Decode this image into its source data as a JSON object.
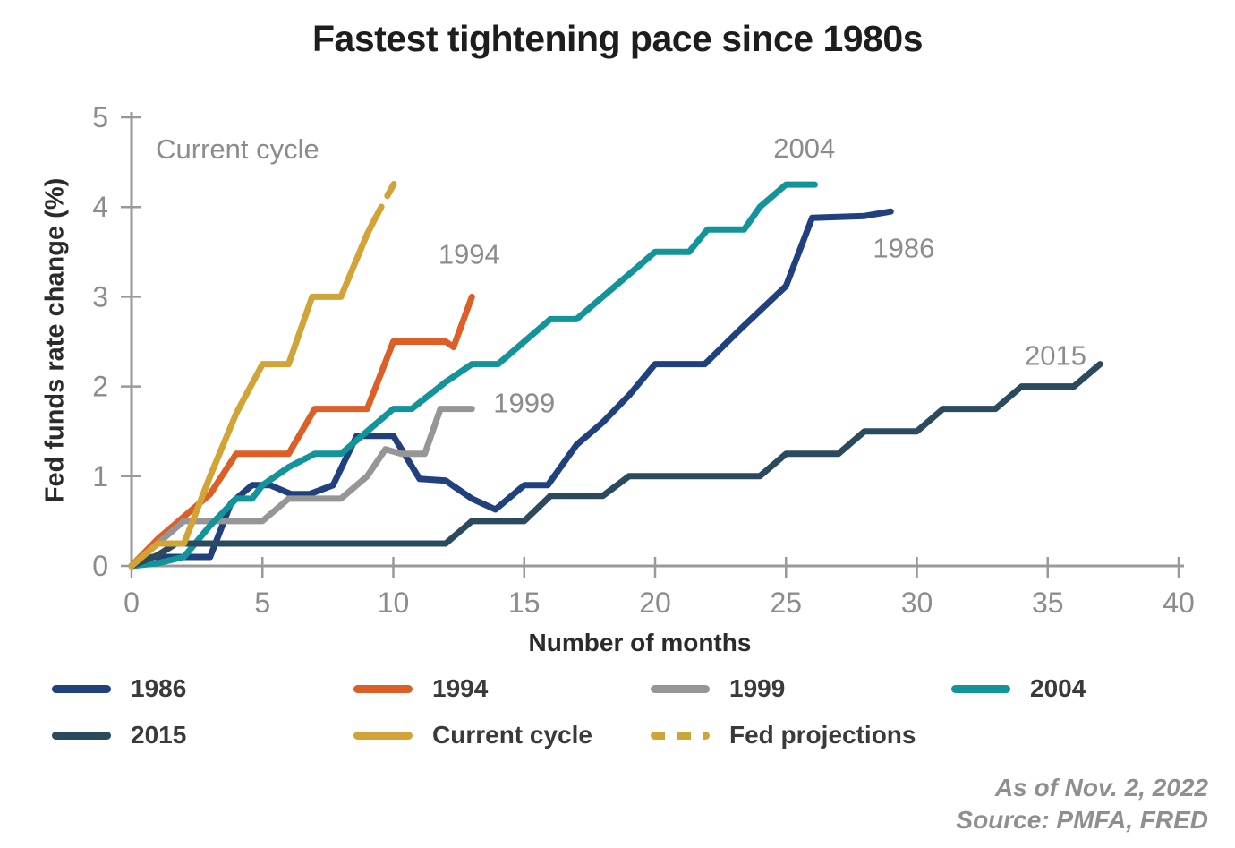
{
  "title": "Fastest tightening pace since 1980s",
  "footer": {
    "as_of": "As of Nov. 2, 2022",
    "source": "Source: PMFA, FRED"
  },
  "colors": {
    "axis": "#999999",
    "tick_label": "#8C8C8C",
    "annotation": "#8C8C8C",
    "title_text": "#1d1d1d"
  },
  "chart_data": {
    "type": "line",
    "title": "Fastest tightening pace since 1980s",
    "xlabel": "Number of months",
    "ylabel": "Fed funds rate change (%)",
    "xlim": [
      0,
      40
    ],
    "ylim": [
      0,
      5
    ],
    "x_ticks": [
      0,
      5,
      10,
      15,
      20,
      25,
      30,
      35,
      40
    ],
    "y_ticks": [
      0,
      1,
      2,
      3,
      4,
      5
    ],
    "grid": false,
    "legend_position": "bottom",
    "series": [
      {
        "name": "1986",
        "color": "#20417D",
        "style": "solid",
        "points": [
          [
            0,
            0
          ],
          [
            0.8,
            0.1
          ],
          [
            3,
            0.1
          ],
          [
            3.8,
            0.7
          ],
          [
            4.6,
            0.9
          ],
          [
            5.3,
            0.9
          ],
          [
            6.1,
            0.8
          ],
          [
            6.8,
            0.8
          ],
          [
            7.7,
            0.9
          ],
          [
            8.6,
            1.45
          ],
          [
            10,
            1.45
          ],
          [
            11,
            0.97
          ],
          [
            12,
            0.95
          ],
          [
            13,
            0.75
          ],
          [
            13.9,
            0.63
          ],
          [
            15,
            0.9
          ],
          [
            15.9,
            0.9
          ],
          [
            17,
            1.35
          ],
          [
            18,
            1.6
          ],
          [
            19,
            1.9
          ],
          [
            20,
            2.25
          ],
          [
            21.9,
            2.25
          ],
          [
            23.3,
            2.65
          ],
          [
            25,
            3.12
          ],
          [
            26,
            3.88
          ],
          [
            28,
            3.9
          ],
          [
            29,
            3.95
          ]
        ]
      },
      {
        "name": "1994",
        "color": "#DB5F27",
        "style": "solid",
        "points": [
          [
            0,
            0
          ],
          [
            1,
            0.3
          ],
          [
            2,
            0.55
          ],
          [
            3,
            0.8
          ],
          [
            4,
            1.25
          ],
          [
            6,
            1.25
          ],
          [
            7,
            1.75
          ],
          [
            9,
            1.75
          ],
          [
            10,
            2.5
          ],
          [
            12,
            2.5
          ],
          [
            12.3,
            2.44
          ],
          [
            13,
            3.0
          ]
        ]
      },
      {
        "name": "1999",
        "color": "#969696",
        "style": "solid",
        "points": [
          [
            0,
            0
          ],
          [
            1,
            0.25
          ],
          [
            2,
            0.5
          ],
          [
            5,
            0.5
          ],
          [
            6,
            0.75
          ],
          [
            8,
            0.75
          ],
          [
            9,
            1.0
          ],
          [
            9.7,
            1.3
          ],
          [
            10.3,
            1.25
          ],
          [
            11.2,
            1.25
          ],
          [
            11.8,
            1.75
          ],
          [
            13,
            1.75
          ]
        ]
      },
      {
        "name": "2004",
        "color": "#13949B",
        "style": "solid",
        "points": [
          [
            0,
            0
          ],
          [
            1,
            0.03
          ],
          [
            2,
            0.1
          ],
          [
            3,
            0.45
          ],
          [
            4,
            0.75
          ],
          [
            4.6,
            0.75
          ],
          [
            5,
            0.9
          ],
          [
            6,
            1.1
          ],
          [
            7,
            1.25
          ],
          [
            8,
            1.25
          ],
          [
            9,
            1.5
          ],
          [
            10,
            1.75
          ],
          [
            10.7,
            1.75
          ],
          [
            12,
            2.05
          ],
          [
            13,
            2.25
          ],
          [
            14,
            2.25
          ],
          [
            15,
            2.5
          ],
          [
            16,
            2.75
          ],
          [
            17,
            2.75
          ],
          [
            18,
            3.0
          ],
          [
            19,
            3.25
          ],
          [
            20,
            3.5
          ],
          [
            21.3,
            3.5
          ],
          [
            22,
            3.75
          ],
          [
            23.4,
            3.75
          ],
          [
            24,
            4.0
          ],
          [
            25,
            4.25
          ],
          [
            26.1,
            4.25
          ]
        ]
      },
      {
        "name": "2015",
        "color": "#2C4A5E",
        "style": "solid",
        "points": [
          [
            0,
            0
          ],
          [
            1,
            0.12
          ],
          [
            1.7,
            0.25
          ],
          [
            12,
            0.25
          ],
          [
            13,
            0.5
          ],
          [
            15,
            0.5
          ],
          [
            16,
            0.78
          ],
          [
            18,
            0.78
          ],
          [
            19,
            1.0
          ],
          [
            24,
            1.0
          ],
          [
            25,
            1.25
          ],
          [
            27,
            1.25
          ],
          [
            28,
            1.5
          ],
          [
            30,
            1.5
          ],
          [
            31,
            1.75
          ],
          [
            33,
            1.75
          ],
          [
            34,
            2.0
          ],
          [
            36,
            2.0
          ],
          [
            37,
            2.25
          ]
        ]
      },
      {
        "name": "Current cycle",
        "color": "#D2A437",
        "style": "solid",
        "points": [
          [
            0,
            0
          ],
          [
            1,
            0.25
          ],
          [
            2,
            0.25
          ],
          [
            3,
            1.0
          ],
          [
            4,
            1.7
          ],
          [
            5,
            2.25
          ],
          [
            6,
            2.25
          ],
          [
            6.9,
            3.0
          ],
          [
            8,
            3.0
          ],
          [
            9,
            3.7
          ],
          [
            9.3,
            3.87
          ]
        ]
      },
      {
        "name": "Fed projections",
        "color": "#D2A437",
        "style": "dashed",
        "points": [
          [
            9.3,
            3.87
          ],
          [
            10.1,
            4.3
          ]
        ]
      }
    ],
    "annotations": [
      {
        "text": "Current cycle",
        "x": 4.05,
        "y": 4.64
      },
      {
        "text": "1994",
        "x": 12.9,
        "y": 3.47
      },
      {
        "text": "1999",
        "x": 15.0,
        "y": 1.81
      },
      {
        "text": "2004",
        "x": 25.7,
        "y": 4.65
      },
      {
        "text": "1986",
        "x": 29.5,
        "y": 3.54
      },
      {
        "text": "2015",
        "x": 35.3,
        "y": 2.34
      }
    ]
  }
}
